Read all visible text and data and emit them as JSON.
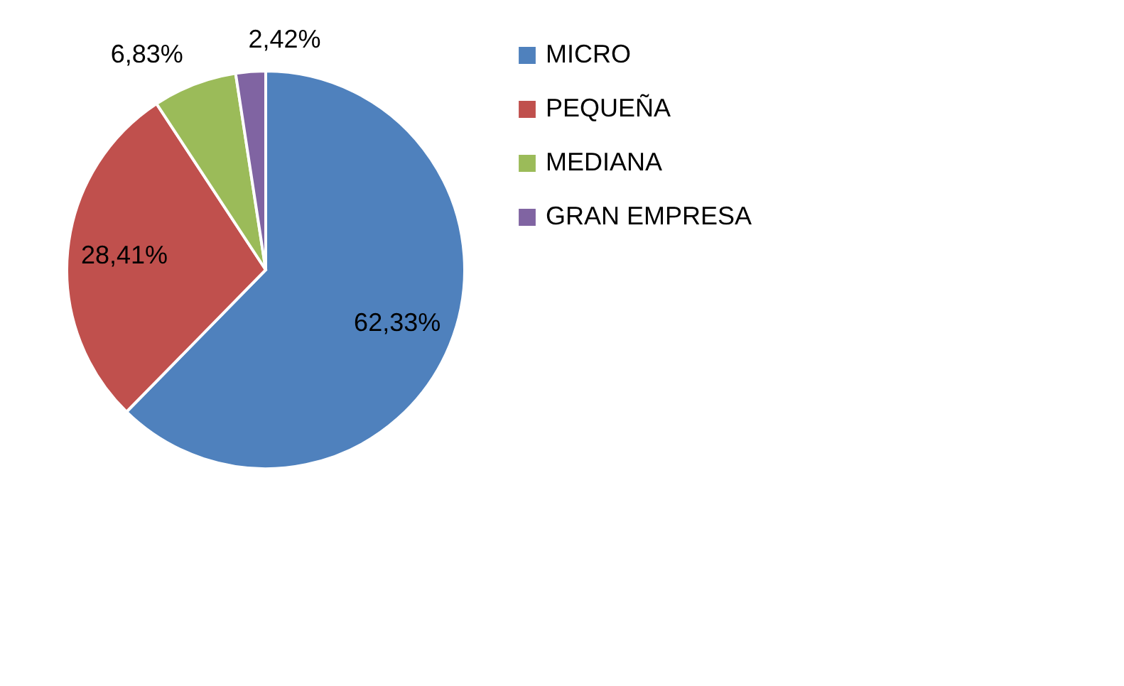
{
  "chart_data": {
    "type": "pie",
    "categories": [
      "MICRO",
      "PEQUEÑA",
      "MEDIANA",
      "GRAN EMPRESA"
    ],
    "values": [
      62.33,
      28.41,
      6.83,
      2.42
    ],
    "colors": [
      "#4f81bd",
      "#c0504d",
      "#9bbb59",
      "#8064a2"
    ],
    "value_labels": [
      "62,33%",
      "28,41%",
      "6,83%",
      "2,42%"
    ],
    "legend": "right"
  }
}
